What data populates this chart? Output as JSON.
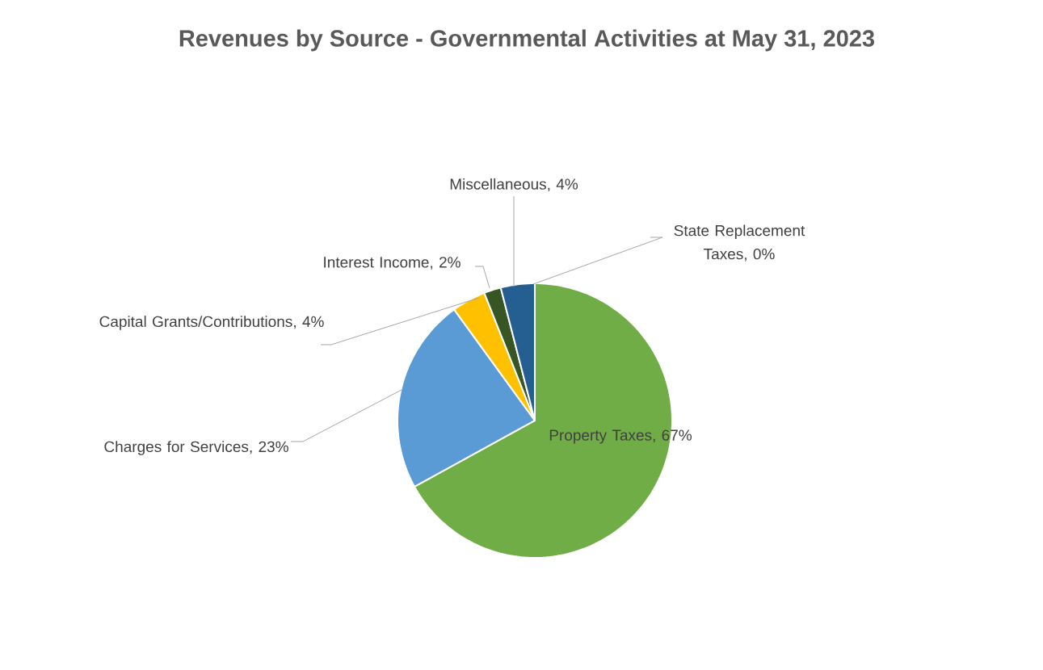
{
  "chart_data": {
    "type": "pie",
    "title": "Revenues by Source - Governmental Activities at May 31, 2023",
    "categories": [
      "Property Taxes",
      "Charges for Services",
      "Capital Grants/Contributions",
      "Interest Income",
      "Miscellaneous",
      "State Replacement Taxes"
    ],
    "values": [
      67,
      23,
      4,
      2,
      4,
      0
    ],
    "value_labels": [
      ", 67%",
      ", 23%",
      ", 4%",
      ", 2%",
      ", 4%",
      ", 0%"
    ],
    "colors": [
      "#70ad47",
      "#5b9bd5",
      "#ffc000",
      "#375623",
      "#255e91",
      "#a5a5a5"
    ]
  }
}
